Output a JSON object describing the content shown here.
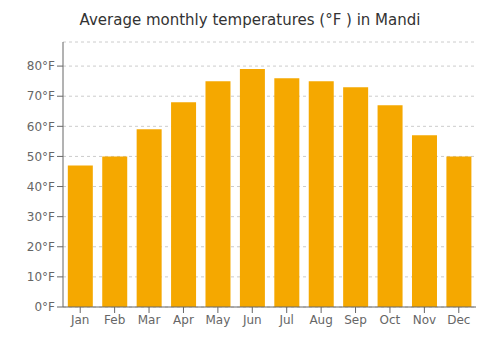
{
  "chart_data": {
    "type": "bar",
    "title": "Average monthly temperatures (°F ) in Mandi",
    "categories": [
      "Jan",
      "Feb",
      "Mar",
      "Apr",
      "May",
      "Jun",
      "Jul",
      "Aug",
      "Sep",
      "Oct",
      "Nov",
      "Dec"
    ],
    "values": [
      47,
      50,
      59,
      68,
      75,
      79,
      76,
      75,
      73,
      67,
      57,
      50
    ],
    "color": "#F5A800",
    "ylim": [
      0,
      88
    ],
    "yticks": [
      {
        "value": 0,
        "label": "0°F"
      },
      {
        "value": 10,
        "label": "10°F"
      },
      {
        "value": 20,
        "label": "20°F"
      },
      {
        "value": 30,
        "label": "30°F"
      },
      {
        "value": 40,
        "label": "40°F"
      },
      {
        "value": 50,
        "label": "50°F"
      },
      {
        "value": 60,
        "label": "60°F"
      },
      {
        "value": 70,
        "label": "70°F"
      },
      {
        "value": 80,
        "label": "80°F"
      }
    ],
    "grid": true
  }
}
